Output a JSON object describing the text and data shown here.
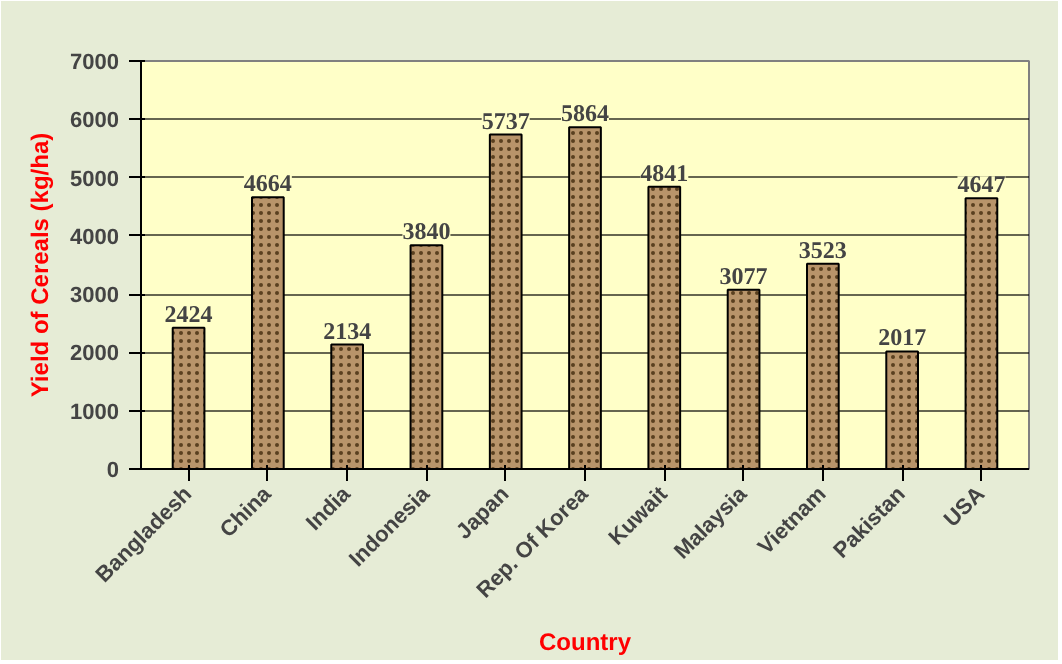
{
  "chart_data": {
    "type": "bar",
    "xlabel": "Country",
    "ylabel": "Yield of Cereals (kg/ha)",
    "categories": [
      "Bangladesh",
      "China",
      "India",
      "Indonesia",
      "Japan",
      "Rep. Of Korea",
      "Kuwait",
      "Malaysia",
      "Vietnam",
      "Pakistan",
      "USA"
    ],
    "values": [
      2424,
      4664,
      2134,
      3840,
      5737,
      5864,
      4841,
      3077,
      3523,
      2017,
      4647
    ],
    "color": "#b8946a",
    "ylim": [
      0,
      7000
    ],
    "yticks": [
      0,
      1000,
      2000,
      3000,
      4000,
      5000,
      6000,
      7000
    ],
    "grid": "y",
    "data_labels": true
  }
}
